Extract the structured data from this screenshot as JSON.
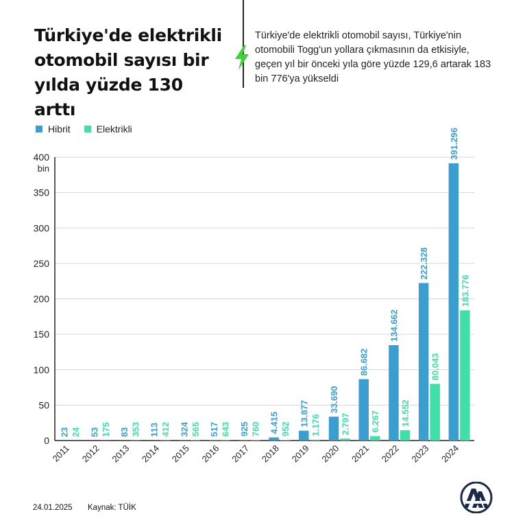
{
  "header": {
    "title": "Türkiye'de elektrikli otomobil sayısı bir yılda yüzde 130 arttı",
    "description": "Türkiye'de elektrikli otomobil sayısı, Türkiye'nin otomobili Togg'un yollara çıkmasının da etkisiyle, geçen yıl bir önceki yıla göre yüzde 129,6 artarak 183 bin 776'ya yükseldi"
  },
  "colors": {
    "hibrit": "#3a9fd0",
    "elektrikli": "#3fe0a8",
    "axis": "#222222",
    "grid": "#d6d6d6",
    "bolt": "#3fd13a"
  },
  "icons": {
    "bolt": "lightning-bolt-icon",
    "logo": "aa-logo"
  },
  "chart_data": {
    "type": "bar",
    "categories": [
      "2011",
      "2012",
      "2013",
      "2014",
      "2015",
      "2016",
      "2017",
      "2018",
      "2019",
      "2020",
      "2021",
      "2022",
      "2023",
      "2024"
    ],
    "series": [
      {
        "name": "Hibrit",
        "values": [
          23,
          53,
          83,
          113,
          324,
          517,
          925,
          4415,
          13877,
          33690,
          86682,
          134662,
          222328,
          391296
        ],
        "labels": [
          "23",
          "53",
          "83",
          "113",
          "324",
          "517",
          "925",
          "4.415",
          "13.877",
          "33.690",
          "86.682",
          "134.662",
          "222.328",
          "391.296"
        ]
      },
      {
        "name": "Elektrikli",
        "values": [
          24,
          175,
          353,
          412,
          565,
          643,
          760,
          952,
          1176,
          2797,
          6267,
          14552,
          80043,
          183776
        ],
        "labels": [
          "24",
          "175",
          "353",
          "412",
          "565",
          "643",
          "760",
          "952",
          "1.176",
          "2.797",
          "6.267",
          "14.552",
          "80.043",
          "183.776"
        ]
      }
    ],
    "ylim": [
      0,
      400000
    ],
    "yticks": [
      0,
      50000,
      100000,
      150000,
      200000,
      250000,
      300000,
      350000,
      400000
    ],
    "ytick_labels": [
      "0",
      "50",
      "100",
      "150",
      "200",
      "250",
      "300",
      "350",
      "400"
    ],
    "yunit": "bin",
    "grid": true,
    "legend_position": "top-left"
  },
  "footer": {
    "date": "24.01.2025",
    "source": "Kaynak: TÜİK"
  }
}
